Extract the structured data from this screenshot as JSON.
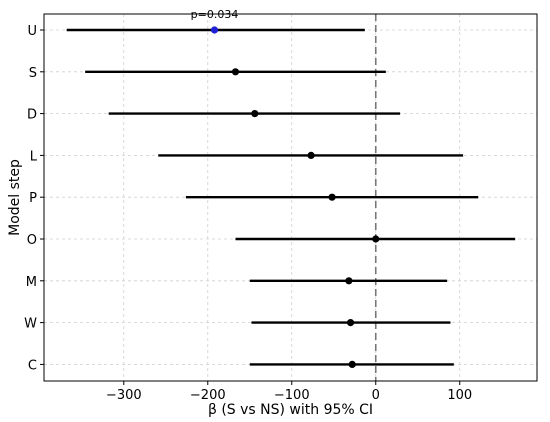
{
  "chart_data": {
    "type": "forest",
    "xlabel": "β (S vs NS) with 95% CI",
    "ylabel": "Model step",
    "xlim": [
      -395,
      192
    ],
    "xticks": [
      -300,
      -200,
      -100,
      0,
      100
    ],
    "xtick_labels": [
      "−300",
      "−200",
      "−100",
      "0",
      "100"
    ],
    "grid": true,
    "reference_line": 0,
    "rows": [
      {
        "label": "U",
        "estimate": -192,
        "ci_low": -368,
        "ci_high": -13,
        "color": "#1f1fd6",
        "annotation": "p=0.034"
      },
      {
        "label": "S",
        "estimate": -167,
        "ci_low": -346,
        "ci_high": 12,
        "color": "#000000"
      },
      {
        "label": "D",
        "estimate": -144,
        "ci_low": -318,
        "ci_high": 29,
        "color": "#000000"
      },
      {
        "label": "L",
        "estimate": -77,
        "ci_low": -259,
        "ci_high": 104,
        "color": "#000000"
      },
      {
        "label": "P",
        "estimate": -52,
        "ci_low": -226,
        "ci_high": 122,
        "color": "#000000"
      },
      {
        "label": "O",
        "estimate": 0,
        "ci_low": -167,
        "ci_high": 166,
        "color": "#000000"
      },
      {
        "label": "M",
        "estimate": -32,
        "ci_low": -150,
        "ci_high": 85,
        "color": "#000000"
      },
      {
        "label": "W",
        "estimate": -30,
        "ci_low": -148,
        "ci_high": 89,
        "color": "#000000"
      },
      {
        "label": "C",
        "estimate": -28,
        "ci_low": -150,
        "ci_high": 93,
        "color": "#000000"
      }
    ]
  }
}
